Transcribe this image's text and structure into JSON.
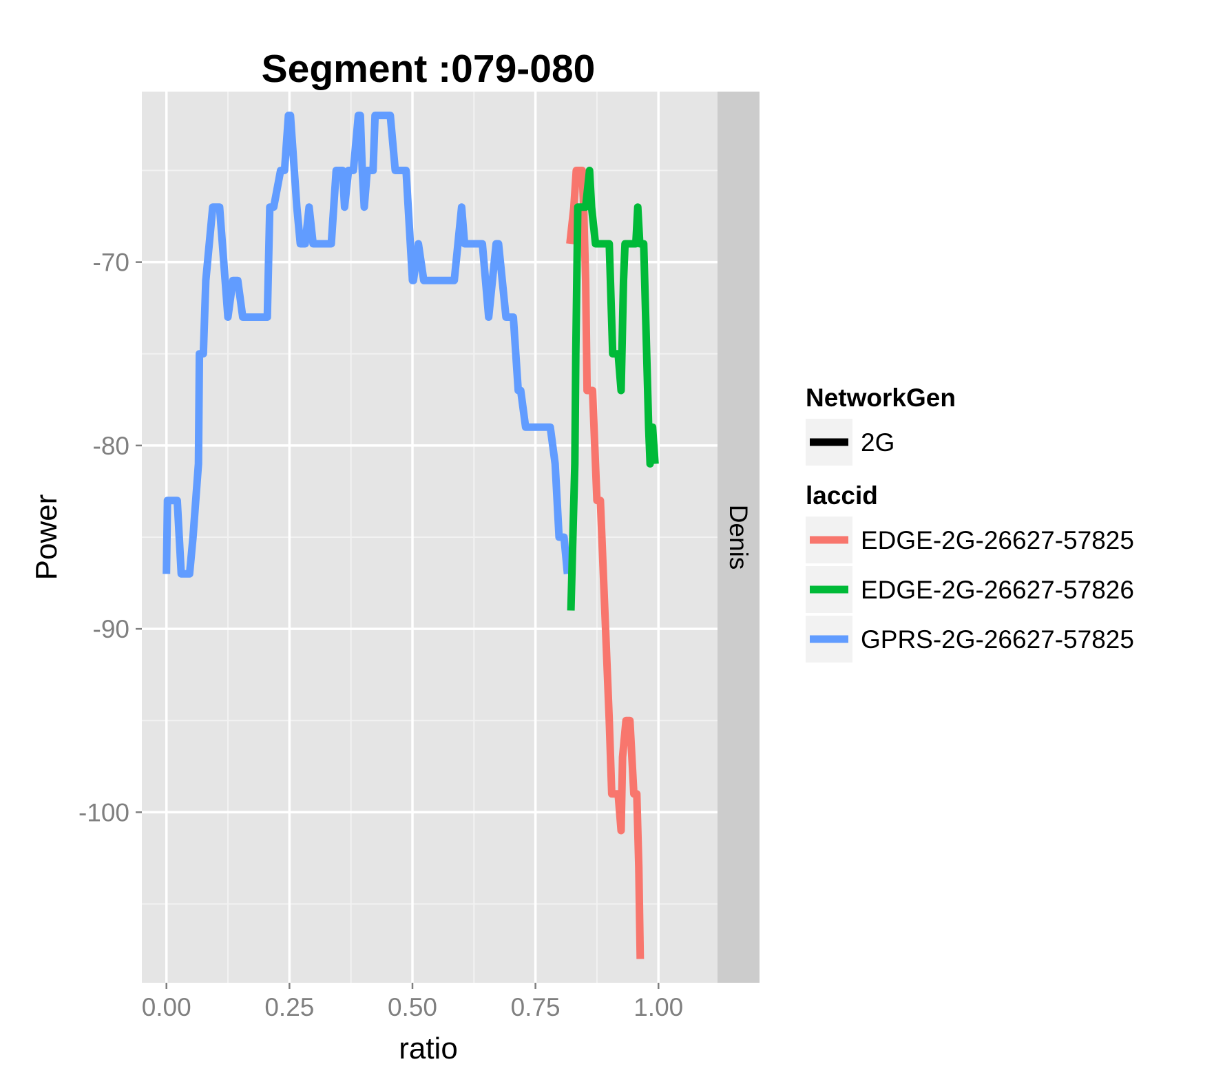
{
  "chart_data": {
    "type": "line",
    "title": "Segment :079-080",
    "xlabel": "ratio",
    "ylabel": "Power",
    "xlim": [
      -0.05,
      1.12
    ],
    "ylim": [
      -109.3,
      -60.7
    ],
    "x_ticks": [
      {
        "value": 0,
        "label": "0.00"
      },
      {
        "value": 0.25,
        "label": "0.25"
      },
      {
        "value": 0.5,
        "label": "0.50"
      },
      {
        "value": 0.75,
        "label": "0.75"
      },
      {
        "value": 1.0,
        "label": "1.00"
      }
    ],
    "y_ticks": [
      {
        "value": -70,
        "label": "-70"
      },
      {
        "value": -80,
        "label": "-80"
      },
      {
        "value": -90,
        "label": "-90"
      },
      {
        "value": -100,
        "label": "-100"
      }
    ],
    "facet_strip_label": "Denis",
    "grid": true,
    "legend_position": "right",
    "legends": [
      {
        "title": "NetworkGen",
        "entries": [
          {
            "label": "2G",
            "color": "#000000"
          }
        ]
      },
      {
        "title": "laccid",
        "entries": [
          {
            "label": "EDGE-2G-26627-57825",
            "color": "#F8766D"
          },
          {
            "label": "EDGE-2G-26627-57826",
            "color": "#00BA38"
          },
          {
            "label": "GPRS-2G-26627-57825",
            "color": "#619CFF"
          }
        ]
      }
    ],
    "series": [
      {
        "name": "GPRS-2G-26627-57825",
        "color": "#619CFF",
        "x": [
          0.0,
          0.002,
          0.005,
          0.022,
          0.03,
          0.047,
          0.054,
          0.065,
          0.067,
          0.075,
          0.08,
          0.094,
          0.108,
          0.125,
          0.135,
          0.145,
          0.155,
          0.205,
          0.21,
          0.218,
          0.232,
          0.24,
          0.248,
          0.252,
          0.265,
          0.272,
          0.282,
          0.29,
          0.298,
          0.335,
          0.345,
          0.358,
          0.362,
          0.37,
          0.377,
          0.38,
          0.39,
          0.394,
          0.398,
          0.402,
          0.408,
          0.41,
          0.42,
          0.424,
          0.432,
          0.447,
          0.455,
          0.465,
          0.47,
          0.487,
          0.5,
          0.502,
          0.512,
          0.523,
          0.528,
          0.545,
          0.585,
          0.6,
          0.606,
          0.612,
          0.615,
          0.642,
          0.655,
          0.67,
          0.675,
          0.69,
          0.705,
          0.715,
          0.72,
          0.73,
          0.735,
          0.74,
          0.78,
          0.79,
          0.798,
          0.808,
          0.815
        ],
        "values": [
          -87,
          -83,
          -83,
          -83,
          -87,
          -87,
          -85,
          -81,
          -75,
          -75,
          -71,
          -67,
          -67,
          -73,
          -71,
          -71,
          -73,
          -73,
          -67,
          -67,
          -65,
          -65,
          -62,
          -62,
          -67,
          -69,
          -69,
          -67,
          -69,
          -69,
          -65,
          -65,
          -67,
          -65,
          -65,
          -65,
          -62,
          -62,
          -65,
          -67,
          -65,
          -65,
          -65,
          -62,
          -62,
          -62,
          -62,
          -65,
          -65,
          -65,
          -71,
          -71,
          -69,
          -71,
          -71,
          -71,
          -71,
          -67,
          -69,
          -69,
          -69,
          -69,
          -73,
          -69,
          -69,
          -73,
          -73,
          -77,
          -77,
          -79,
          -79,
          -79,
          -79,
          -81,
          -85,
          -85,
          -87
        ]
      },
      {
        "name": "EDGE-2G-26627-57825",
        "color": "#F8766D",
        "x": [
          0.82,
          0.828,
          0.833,
          0.838,
          0.845,
          0.848,
          0.852,
          0.855,
          0.86,
          0.866,
          0.875,
          0.882,
          0.888,
          0.9,
          0.905,
          0.918,
          0.924,
          0.927,
          0.934,
          0.942,
          0.95,
          0.956,
          0.96,
          0.963
        ],
        "values": [
          -69,
          -67,
          -65,
          -65,
          -65,
          -67,
          -71,
          -77,
          -77,
          -77,
          -83,
          -83,
          -87,
          -95,
          -99,
          -99,
          -101,
          -97,
          -95,
          -95,
          -99,
          -99,
          -103,
          -108
        ]
      },
      {
        "name": "EDGE-2G-26627-57826",
        "color": "#00BA38",
        "x": [
          0.822,
          0.83,
          0.832,
          0.836,
          0.852,
          0.86,
          0.864,
          0.872,
          0.9,
          0.907,
          0.918,
          0.924,
          0.929,
          0.932,
          0.938,
          0.954,
          0.958,
          0.962,
          0.97,
          0.98,
          0.983,
          0.988,
          0.993
        ],
        "values": [
          -89,
          -81,
          -75,
          -67,
          -67,
          -65,
          -67,
          -69,
          -69,
          -75,
          -75,
          -77,
          -71,
          -69,
          -69,
          -69,
          -67,
          -69,
          -69,
          -79,
          -81,
          -79,
          -81
        ]
      }
    ]
  }
}
